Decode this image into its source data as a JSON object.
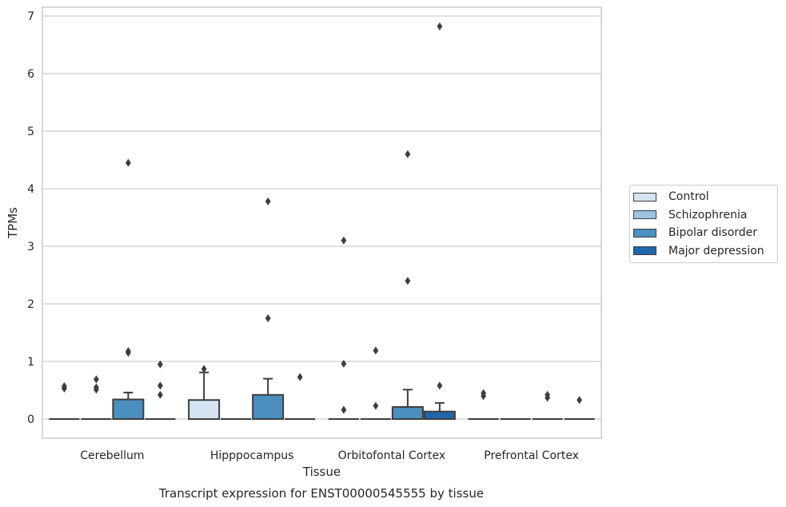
{
  "chart_data": {
    "type": "box",
    "title": "Transcript expression for ENST00000545555 by tissue",
    "xlabel": "Tissue",
    "ylabel": "TPMs",
    "ylim": [
      -0.33,
      7.18
    ],
    "yticks": [
      0,
      1,
      2,
      3,
      4,
      5,
      6,
      7
    ],
    "grid": "horizontal",
    "legend_position": "right",
    "categories": [
      "Cerebellum",
      "Hipppocampus",
      "Orbitofontal Cortex",
      "Prefrontal Cortex"
    ],
    "series": [
      {
        "name": "Control",
        "color": "#d4e4f2",
        "boxes": [
          {
            "q1": 0,
            "median": 0,
            "q3": 0,
            "whisker_low": 0,
            "whisker_high": 0,
            "outliers": [
              0.53,
              0.57
            ]
          },
          {
            "q1": 0,
            "median": 0,
            "q3": 0.33,
            "whisker_low": 0,
            "whisker_high": 0.81,
            "outliers": [
              0.87
            ]
          },
          {
            "q1": 0,
            "median": 0,
            "q3": 0,
            "whisker_low": 0,
            "whisker_high": 0,
            "outliers": [
              0.16,
              0.96,
              3.1
            ]
          },
          {
            "q1": 0,
            "median": 0,
            "q3": 0,
            "whisker_low": 0,
            "whisker_high": 0,
            "outliers": [
              0.4,
              0.45
            ]
          }
        ]
      },
      {
        "name": "Schizophrenia",
        "color": "#9ac4e0",
        "boxes": [
          {
            "q1": 0,
            "median": 0,
            "q3": 0,
            "whisker_low": 0,
            "whisker_high": 0,
            "outliers": [
              0.51,
              0.55,
              0.69
            ]
          },
          {
            "q1": 0,
            "median": 0,
            "q3": 0,
            "whisker_low": 0,
            "whisker_high": 0,
            "outliers": []
          },
          {
            "q1": 0,
            "median": 0,
            "q3": 0,
            "whisker_low": 0,
            "whisker_high": 0,
            "outliers": [
              0.23,
              1.19
            ]
          },
          {
            "q1": 0,
            "median": 0,
            "q3": 0,
            "whisker_low": 0,
            "whisker_high": 0,
            "outliers": []
          }
        ]
      },
      {
        "name": "Bipolar disorder",
        "color": "#4b8fc0",
        "boxes": [
          {
            "q1": 0,
            "median": 0,
            "q3": 0.34,
            "whisker_low": 0,
            "whisker_high": 0.46,
            "outliers": [
              1.15,
              1.18,
              4.45
            ]
          },
          {
            "q1": 0,
            "median": 0,
            "q3": 0.42,
            "whisker_low": 0,
            "whisker_high": 0.7,
            "outliers": [
              1.75,
              3.78
            ]
          },
          {
            "q1": 0,
            "median": 0,
            "q3": 0.21,
            "whisker_low": 0,
            "whisker_high": 0.51,
            "outliers": [
              2.4,
              4.6
            ]
          },
          {
            "q1": 0,
            "median": 0,
            "q3": 0,
            "whisker_low": 0,
            "whisker_high": 0,
            "outliers": [
              0.37,
              0.42
            ]
          }
        ]
      },
      {
        "name": "Major depression",
        "color": "#2166ac",
        "boxes": [
          {
            "q1": 0,
            "median": 0,
            "q3": 0,
            "whisker_low": 0,
            "whisker_high": 0,
            "outliers": [
              0.42,
              0.58,
              0.95
            ]
          },
          {
            "q1": 0,
            "median": 0,
            "q3": 0,
            "whisker_low": 0,
            "whisker_high": 0,
            "outliers": [
              0.73
            ]
          },
          {
            "q1": 0,
            "median": 0,
            "q3": 0.13,
            "whisker_low": 0,
            "whisker_high": 0.28,
            "outliers": [
              0.58,
              6.82
            ]
          },
          {
            "q1": 0,
            "median": 0,
            "q3": 0,
            "whisker_low": 0,
            "whisker_high": 0,
            "outliers": [
              0.33
            ]
          }
        ]
      }
    ]
  }
}
